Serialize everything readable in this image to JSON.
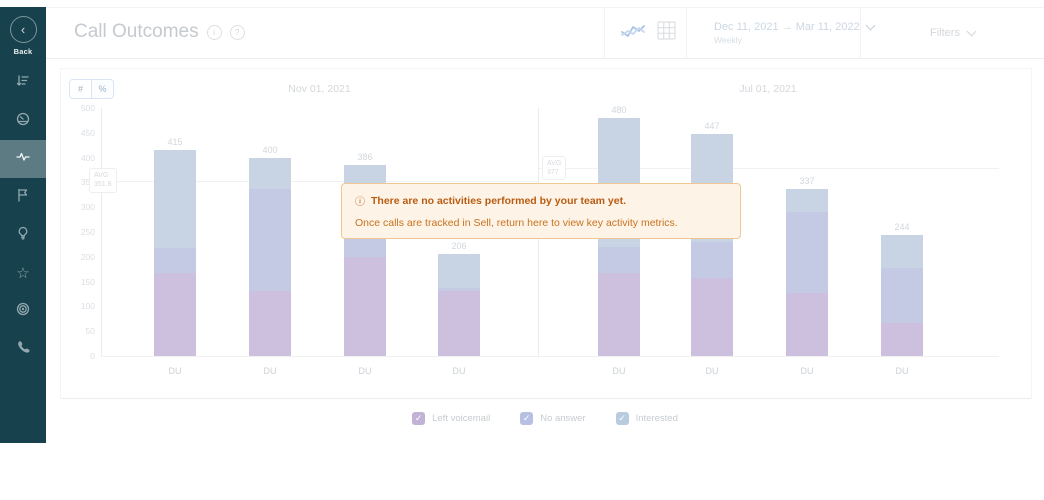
{
  "colors": {
    "sidebar_bg": "#16414d",
    "sidebar_active_bg": "#5d7b83",
    "notice_bg": "#fdf3e7",
    "notice_border": "#eec795",
    "notice_title_text": "#b95c12",
    "notice_body_text": "#c9731f",
    "accent_blue": "#a9c3e6"
  },
  "sidebar": {
    "back_label": "Back",
    "items": [
      {
        "icon": "sort-descending-icon",
        "active": false
      },
      {
        "icon": "dashboard-gauge-icon",
        "active": false
      },
      {
        "icon": "activity-pulse-icon",
        "active": true
      },
      {
        "icon": "flag-icon",
        "active": false
      },
      {
        "icon": "lightbulb-icon",
        "active": false
      },
      {
        "icon": "star-icon",
        "active": false
      },
      {
        "icon": "target-icon",
        "active": false
      },
      {
        "icon": "phone-icon",
        "active": false
      }
    ]
  },
  "header": {
    "title": "Call Outcomes",
    "info_icon": "i",
    "help_icon": "?",
    "view_toggle": {
      "chart_view_icon": "line-chart-icon",
      "table_view_icon": "table-grid-icon"
    },
    "date_range": {
      "label": "Dec 11, 2021 → Mar 11, 2022",
      "granularity": "Weekly"
    },
    "filters_label": "Filters"
  },
  "chart_data": {
    "type": "bar",
    "stacked": true,
    "unit_toggle": {
      "options": [
        "#",
        "%"
      ],
      "selected": "#"
    },
    "ylim": [
      0,
      500
    ],
    "y_ticks": [
      0,
      50,
      100,
      150,
      200,
      250,
      300,
      350,
      400,
      450,
      500
    ],
    "grid": false,
    "legend_position": "bottom",
    "series": [
      {
        "key": "left_voicemail",
        "name": "Left voicemail",
        "color": "#cdc0de",
        "legend_color": "#c2b2d6"
      },
      {
        "key": "no_answer",
        "name": "No answer",
        "color": "#c5cae4",
        "legend_color": "#b7c0e2"
      },
      {
        "key": "interested",
        "name": "Interested",
        "color": "#c8d4e3",
        "legend_color": "#b9cbdf"
      }
    ],
    "panels": [
      {
        "title": "Nov 01, 2021",
        "avg_label": "AVG",
        "avg_display": "351.8",
        "avg": 351.8,
        "bars": [
          {
            "x": "DU",
            "total": 415,
            "left_voicemail": 168,
            "no_answer": 49,
            "interested": 198
          },
          {
            "x": "DU",
            "total": 400,
            "left_voicemail": 131,
            "no_answer": 205,
            "interested": 64
          },
          {
            "x": "DU",
            "total": 386,
            "left_voicemail": 199,
            "no_answer": 77,
            "interested": 110
          },
          {
            "x": "DU",
            "total": 206,
            "left_voicemail": 131,
            "no_answer": 7,
            "interested": 68
          }
        ]
      },
      {
        "title": "Jul 01, 2021",
        "avg_label": "AVG",
        "avg_display": "377",
        "avg": 377,
        "bars": [
          {
            "x": "DU",
            "total": 480,
            "left_voicemail": 168,
            "no_answer": 51,
            "interested": 261
          },
          {
            "x": "DU",
            "total": 447,
            "left_voicemail": 158,
            "no_answer": 71,
            "interested": 218
          },
          {
            "x": "DU",
            "total": 337,
            "left_voicemail": 127,
            "no_answer": 164,
            "interested": 46
          },
          {
            "x": "DU",
            "total": 244,
            "left_voicemail": 66,
            "no_answer": 112,
            "interested": 66
          }
        ]
      }
    ]
  },
  "notice": {
    "icon": "ⓘ",
    "title": "There are no activities performed by your team yet.",
    "body": "Once calls are tracked in Sell, return here to view key activity metrics."
  }
}
